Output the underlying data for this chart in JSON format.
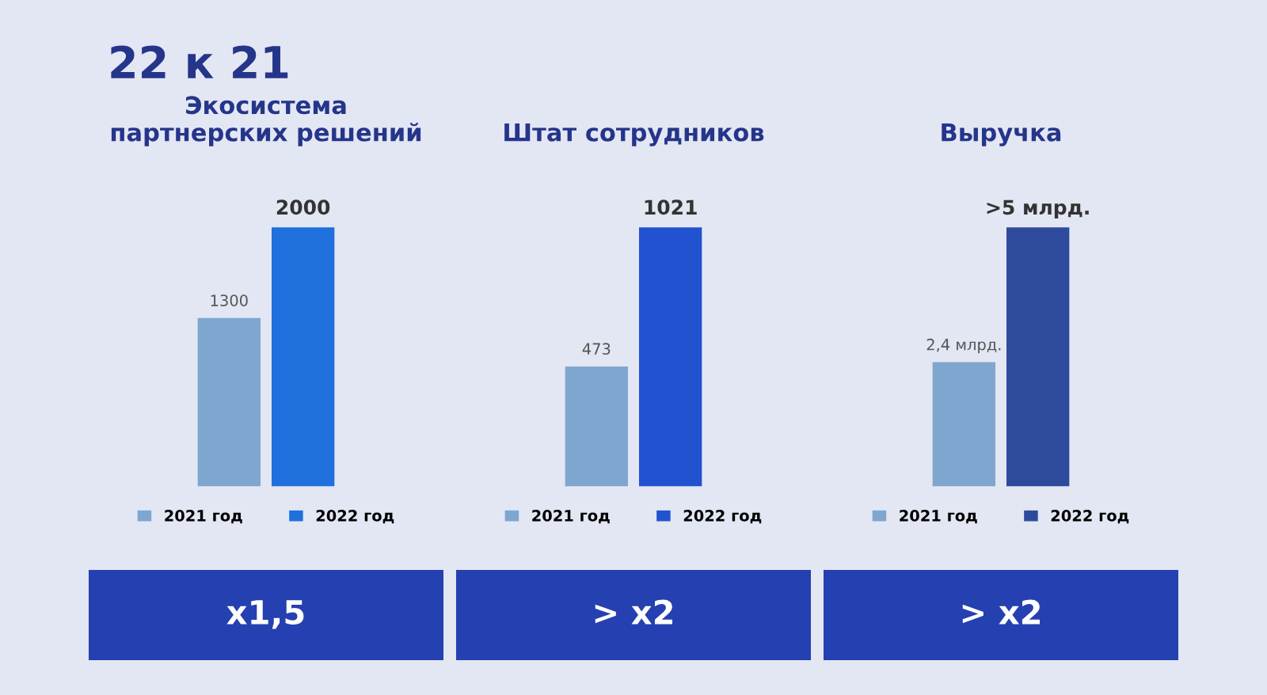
{
  "chart_data": [
    {
      "type": "bar",
      "title": "Экосистема\nпартнерских решений",
      "categories": [
        null
      ],
      "data_labels": true,
      "legend": "bottom",
      "annotations": [
        "22 к 21",
        "x1,5"
      ],
      "series": [
        {
          "name": "2021 год",
          "color": "#7fa6cf",
          "values": [
            1300
          ]
        },
        {
          "name": "2022 год",
          "color": "#1f6fdc",
          "values": [
            2000
          ]
        }
      ]
    },
    {
      "type": "bar",
      "title": "Штат сотрудников",
      "categories": [
        null
      ],
      "data_labels": true,
      "legend": "bottom",
      "annotations": [
        "> x2"
      ],
      "series": [
        {
          "name": "2021 год",
          "color": "#7fa6cf",
          "values": [
            473
          ]
        },
        {
          "name": "2022 год",
          "color": "#2152d0",
          "values": [
            1021
          ]
        }
      ]
    },
    {
      "type": "bar",
      "title": "Выручка",
      "categories": [
        null
      ],
      "legend": "bottom",
      "annotations": [
        "> x2"
      ],
      "series": [
        {
          "name": "2021 год",
          "color": "#7fa6cf",
          "values": [
            2.4
          ],
          "value_labels": [
            "2,4 млрд."
          ]
        },
        {
          "name": "2022 год",
          "color": "#2d4a9c",
          "values": [
            5
          ],
          "value_labels": [
            ">5 млрд."
          ]
        }
      ]
    }
  ]
}
